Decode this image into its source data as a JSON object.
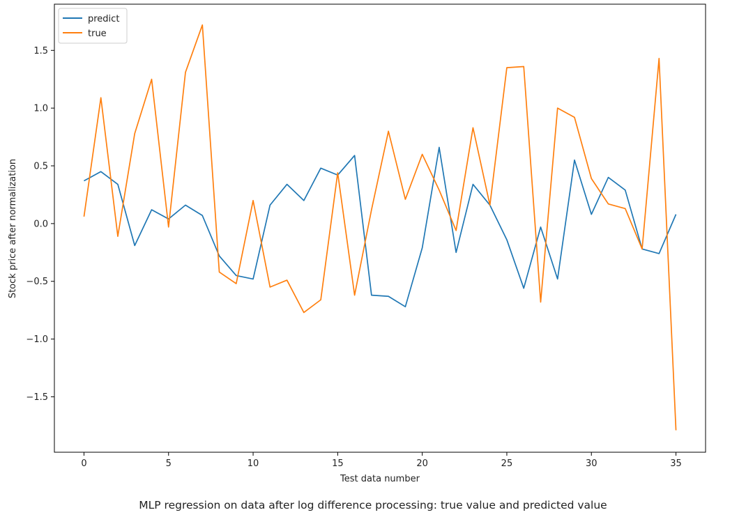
{
  "chart_data": {
    "type": "line",
    "title": "MLP regression on data after log difference processing: true value and predicted value",
    "xlabel": "Test data number",
    "ylabel": "Stock price after normalization",
    "xlim": [
      -1.75,
      36.75
    ],
    "ylim": [
      -1.98,
      1.9
    ],
    "xticks": [
      0,
      5,
      10,
      15,
      20,
      25,
      30,
      35
    ],
    "yticks": [
      -1.5,
      -1.0,
      -0.5,
      0.0,
      0.5,
      1.0,
      1.5
    ],
    "xtick_labels": [
      "0",
      "5",
      "10",
      "15",
      "20",
      "25",
      "30",
      "35"
    ],
    "ytick_labels": [
      "−1.5",
      "−1.0",
      "−0.5",
      "0.0",
      "0.5",
      "1.0",
      "1.5"
    ],
    "legend_position": "top-left",
    "grid": false,
    "x": [
      0,
      1,
      2,
      3,
      4,
      5,
      6,
      7,
      8,
      9,
      10,
      11,
      12,
      13,
      14,
      15,
      16,
      17,
      18,
      19,
      20,
      21,
      22,
      23,
      24,
      25,
      26,
      27,
      28,
      29,
      30,
      31,
      32,
      33,
      34,
      35
    ],
    "series": [
      {
        "name": "predict",
        "color": "#1f77b4",
        "values": [
          0.37,
          0.45,
          0.34,
          -0.19,
          0.12,
          0.04,
          0.16,
          0.07,
          -0.28,
          -0.45,
          -0.48,
          0.16,
          0.34,
          0.2,
          0.48,
          0.42,
          0.59,
          -0.62,
          -0.63,
          -0.72,
          -0.21,
          0.66,
          -0.25,
          0.34,
          0.16,
          -0.14,
          -0.56,
          -0.03,
          -0.48,
          0.55,
          0.08,
          0.4,
          0.29,
          -0.22,
          -0.26,
          0.08
        ]
      },
      {
        "name": "true",
        "color": "#ff7f0e",
        "values": [
          0.06,
          1.09,
          -0.11,
          0.78,
          1.25,
          -0.03,
          1.31,
          1.72,
          -0.42,
          -0.52,
          0.2,
          -0.55,
          -0.49,
          -0.77,
          -0.66,
          0.44,
          -0.62,
          0.12,
          0.8,
          0.21,
          0.6,
          0.29,
          -0.06,
          0.83,
          0.16,
          1.35,
          1.36,
          -0.68,
          1.0,
          0.92,
          0.39,
          0.17,
          0.13,
          -0.22,
          1.43,
          -1.79
        ]
      }
    ]
  }
}
